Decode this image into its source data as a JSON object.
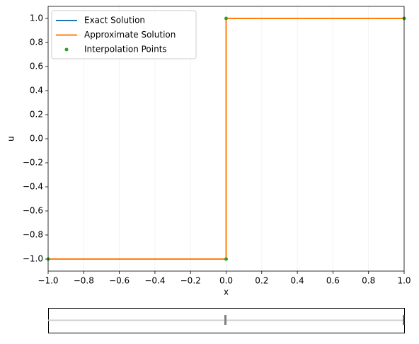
{
  "chart_data": {
    "type": "line",
    "xlabel": "x",
    "ylabel": "u",
    "xlim": [
      -1.0,
      1.0
    ],
    "ylim": [
      -1.1,
      1.1
    ],
    "xticks": [
      {
        "value": -1.0,
        "label": "−1.0"
      },
      {
        "value": -0.8,
        "label": "−0.8"
      },
      {
        "value": -0.6,
        "label": "−0.6"
      },
      {
        "value": -0.4,
        "label": "−0.4"
      },
      {
        "value": -0.2,
        "label": "−0.2"
      },
      {
        "value": 0,
        "label": "0.0"
      },
      {
        "value": 0.2,
        "label": "0.2"
      },
      {
        "value": 0.4,
        "label": "0.4"
      },
      {
        "value": 0.6,
        "label": "0.6"
      },
      {
        "value": 0.8,
        "label": "0.8"
      },
      {
        "value": 1.0,
        "label": "1.0"
      }
    ],
    "yticks": [
      {
        "value": -1.0,
        "label": "−1.0"
      },
      {
        "value": -0.8,
        "label": "−0.8"
      },
      {
        "value": -0.6,
        "label": "−0.6"
      },
      {
        "value": -0.4,
        "label": "−0.4"
      },
      {
        "value": -0.2,
        "label": "−0.2"
      },
      {
        "value": 0,
        "label": "0.0"
      },
      {
        "value": 0.2,
        "label": "0.2"
      },
      {
        "value": 0.4,
        "label": "0.4"
      },
      {
        "value": 0.6,
        "label": "0.6"
      },
      {
        "value": 0.8,
        "label": "0.8"
      },
      {
        "value": 1.0,
        "label": "1.0"
      }
    ],
    "xgrid": true,
    "legend": "upper left",
    "series": [
      {
        "name": "Exact Solution",
        "color": "#1f77b4",
        "kind": "line",
        "x": [
          -1,
          0,
          0,
          1
        ],
        "values": [
          -1,
          -1,
          1,
          1
        ]
      },
      {
        "name": "Approximate Solution",
        "color": "#ff7f0e",
        "kind": "line",
        "x": [
          -1,
          0,
          0,
          1
        ],
        "values": [
          -1,
          -1,
          1,
          1
        ]
      },
      {
        "name": "Interpolation Points",
        "color": "#2ca02c",
        "kind": "points",
        "x": [
          -1,
          0,
          0,
          1
        ],
        "values": [
          -1,
          -1,
          1,
          1
        ]
      }
    ]
  }
}
